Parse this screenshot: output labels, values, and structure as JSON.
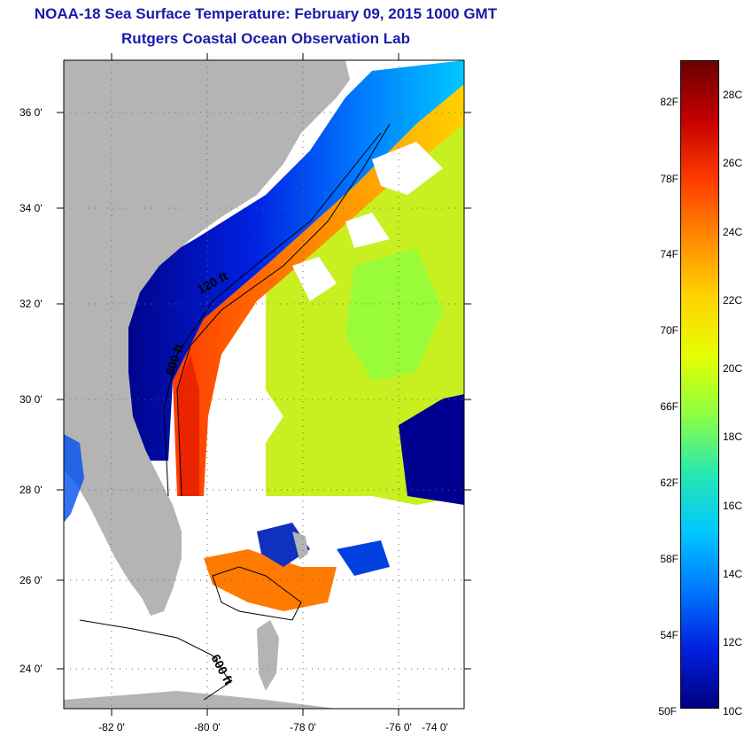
{
  "header": {
    "title": "NOAA-18 Sea Surface Temperature:  February 09, 2015 1000 GMT",
    "subtitle": "Rutgers Coastal Ocean Observation Lab"
  },
  "axes": {
    "lat_labels": [
      "36 0'",
      "34 0'",
      "32 0'",
      "30 0'",
      "28 0'",
      "26 0'",
      "24 0'"
    ],
    "lon_labels": [
      "-82 0'",
      "-80 0'",
      "-78 0'",
      "-76 0'",
      "-74 0'"
    ]
  },
  "contours": {
    "label_120": "120 ft",
    "label_600a": "600 ft",
    "label_600b": "600 ft"
  },
  "colorbar": {
    "fahrenheit_labels": [
      "82F",
      "78F",
      "74F",
      "70F",
      "66F",
      "62F",
      "58F",
      "54F",
      "50F"
    ],
    "celsius_labels": [
      "28C",
      "26C",
      "24C",
      "22C",
      "20C",
      "18C",
      "16C",
      "14C",
      "12C",
      "10C"
    ],
    "colors": [
      "#6b0000",
      "#c40000",
      "#ff3a00",
      "#ff8a00",
      "#ffd200",
      "#e6ff00",
      "#8fff40",
      "#28e8b0",
      "#00c8ff",
      "#0078ff",
      "#0020e0",
      "#000080"
    ]
  },
  "colors": {
    "land": "#b4b4b4",
    "no_data": "#ffffff",
    "title": "#1a1aa8"
  }
}
